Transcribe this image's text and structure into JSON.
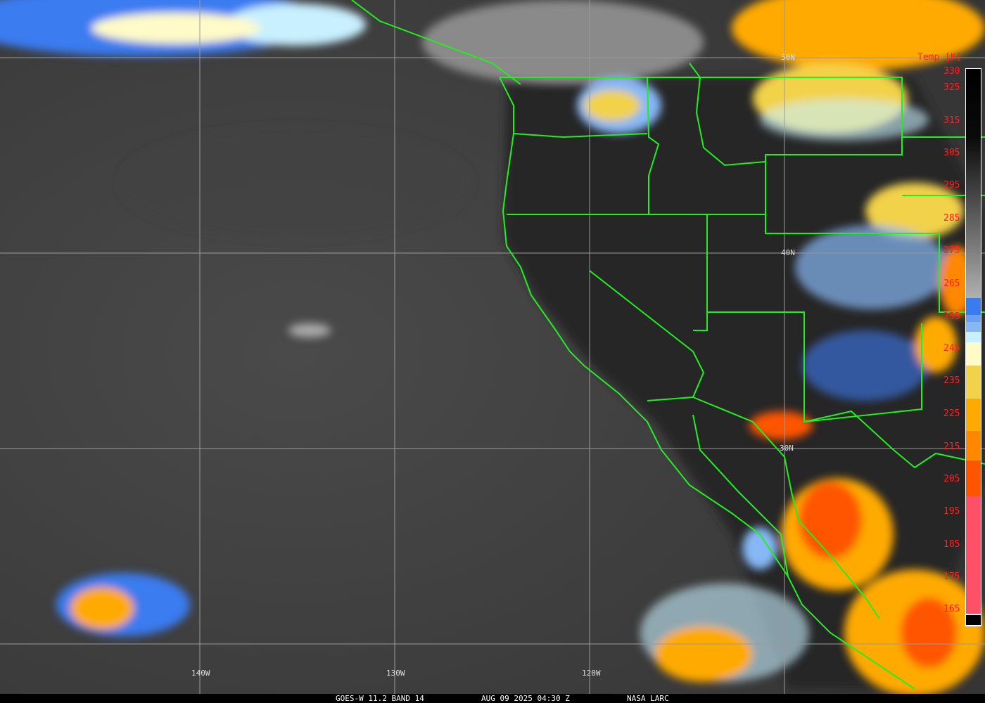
{
  "caption": {
    "satellite": "GOES-W 11.2 BAND 14",
    "datetime": "AUG 09 2025 04:30 Z",
    "source": "NASA LARC"
  },
  "grid": {
    "longitudes": [
      "140W",
      "130W",
      "120W"
    ],
    "latitudes": [
      "50N",
      "40N",
      "30N"
    ]
  },
  "colorbar": {
    "title": "Temp [K]",
    "ticks": [
      "330",
      "325",
      "315",
      "305",
      "295",
      "285",
      "275",
      "265",
      "255",
      "245",
      "235",
      "225",
      "215",
      "205",
      "195",
      "185",
      "175",
      "165"
    ],
    "colors": {
      "blue": "#3a7bf0",
      "light_blue": "#86b8f5",
      "cyan": "#c8f0ff",
      "pale_yellow": "#fffbc8",
      "yellow": "#f2d24a",
      "amber": "#ffaa00",
      "orange": "#ff8800",
      "dark_orange": "#ff5500",
      "pink": "#ff5068"
    }
  },
  "colors": {
    "boundaries": "#22ee22",
    "gridlines": "#9a9a9a",
    "labels": "#ff2020"
  }
}
